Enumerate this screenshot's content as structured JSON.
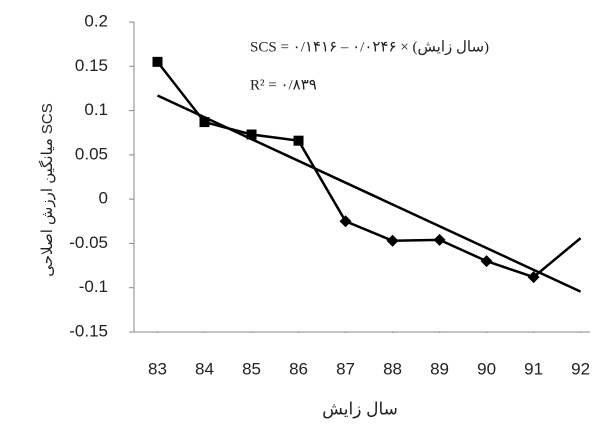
{
  "chart_data": {
    "type": "line",
    "x": [
      83,
      84,
      85,
      86,
      87,
      88,
      89,
      90,
      91,
      92
    ],
    "series": [
      {
        "values": [
          0.155,
          0.087,
          0.073,
          0.066,
          -0.025,
          -0.047,
          -0.046,
          -0.07,
          -0.088,
          -0.044
        ],
        "color": "#000000"
      }
    ],
    "trendline": {
      "x": [
        83,
        92
      ],
      "values": [
        0.117,
        -0.1044
      ],
      "color": "#000000"
    },
    "xlim": [
      82.5,
      92.2
    ],
    "ylim": [
      -0.15,
      0.2
    ],
    "xticks": [
      83,
      84,
      85,
      86,
      87,
      88,
      89,
      90,
      91,
      92
    ],
    "yticks": [
      0.2,
      0.15,
      0.1,
      0.05,
      0,
      -0.05,
      -0.1,
      -0.15
    ],
    "xlabel": "سال زایش",
    "ylabel": "میانگین ارزش اصلاحی SCS",
    "annotations": [
      "SCS = ۰/۱۴۱۶ – ۰/۰۲۴۶ × (سال زایش)",
      "R² = ۰/۸۳۹"
    ]
  }
}
